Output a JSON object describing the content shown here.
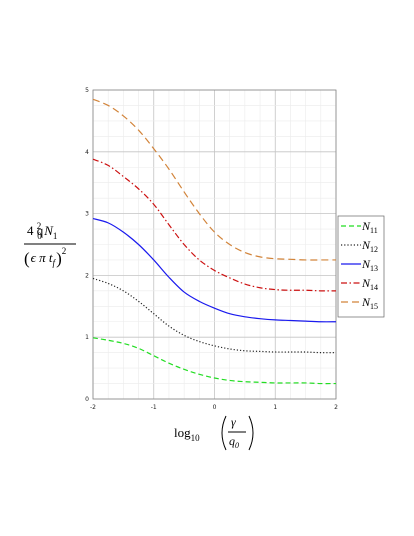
{
  "chart_data": {
    "type": "line",
    "title": "",
    "xlabel": "log 10 ( γ / q0 )",
    "ylabel": "4 q0^2 N1 / (ε π tf)^2",
    "xlim": [
      -2,
      2
    ],
    "ylim": [
      0,
      5
    ],
    "xticks": [
      "-2",
      "-1",
      "0",
      "1",
      "2"
    ],
    "yticks": [
      "0",
      "1",
      "2",
      "3",
      "4",
      "5"
    ],
    "grid": true,
    "legend_position": "right",
    "x": [
      -2,
      -1.75,
      -1.5,
      -1.25,
      -1,
      -0.75,
      -0.5,
      -0.25,
      0,
      0.25,
      0.5,
      0.75,
      1,
      1.25,
      1.5,
      1.75,
      2
    ],
    "series": [
      {
        "name": "N11",
        "color": "#22dd22",
        "dash": "dashed",
        "values": [
          0.99,
          0.95,
          0.9,
          0.82,
          0.7,
          0.58,
          0.48,
          0.4,
          0.34,
          0.3,
          0.28,
          0.27,
          0.26,
          0.26,
          0.26,
          0.25,
          0.25
        ]
      },
      {
        "name": "N12",
        "color": "#222222",
        "dash": "dotted",
        "values": [
          1.95,
          1.87,
          1.75,
          1.58,
          1.38,
          1.18,
          1.03,
          0.93,
          0.86,
          0.81,
          0.78,
          0.77,
          0.76,
          0.76,
          0.76,
          0.75,
          0.75
        ]
      },
      {
        "name": "N13",
        "color": "#1a1aee",
        "dash": "solid",
        "values": [
          2.92,
          2.85,
          2.7,
          2.5,
          2.25,
          1.97,
          1.73,
          1.58,
          1.47,
          1.38,
          1.33,
          1.3,
          1.28,
          1.27,
          1.26,
          1.25,
          1.25
        ]
      },
      {
        "name": "N14",
        "color": "#cc1111",
        "dash": "dashdot",
        "values": [
          3.88,
          3.78,
          3.6,
          3.4,
          3.15,
          2.82,
          2.5,
          2.25,
          2.08,
          1.96,
          1.86,
          1.8,
          1.77,
          1.76,
          1.76,
          1.75,
          1.75
        ]
      },
      {
        "name": "N15",
        "color": "#d2843a",
        "dash": "longdash",
        "values": [
          4.85,
          4.75,
          4.58,
          4.35,
          4.05,
          3.72,
          3.35,
          3.0,
          2.7,
          2.5,
          2.37,
          2.3,
          2.27,
          2.26,
          2.25,
          2.25,
          2.25
        ]
      }
    ]
  },
  "labels": {
    "y_num": "4 q",
    "y_q_sub": "0",
    "y_q_sup": "2",
    "y_N": "N",
    "y_N_sub": "1",
    "y_den_open": "(",
    "y_eps": "ϵ π t",
    "y_t_sub": "f",
    "y_den_close": ")",
    "y_den_sup": "2",
    "x_log": "log",
    "x_log_sub": "10",
    "x_gamma": "γ",
    "x_q": "q",
    "x_q_sub": "0",
    "legend_N": "N",
    "legend_subs": [
      "11",
      "12",
      "13",
      "14",
      "15"
    ]
  }
}
